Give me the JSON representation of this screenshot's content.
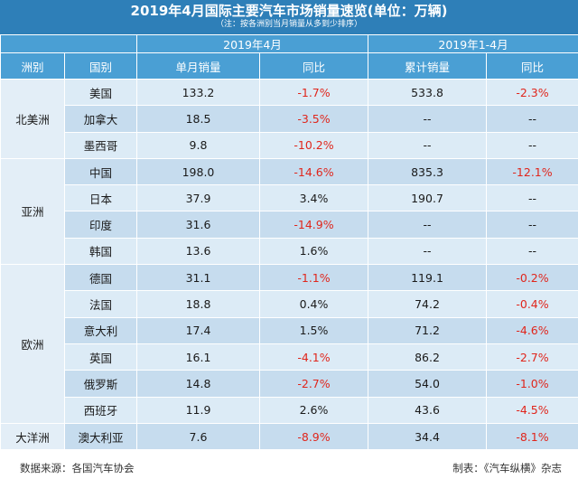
{
  "title": "2019年4月国际主要汽车市场销量速览(单位：万辆)",
  "subtitle": "（注：按各洲别当月销量从多到少排序）",
  "headers": {
    "period_april": "2019年4月",
    "period_ytd": "2019年1-4月",
    "continent": "洲别",
    "country": "国别",
    "monthly_sales": "单月销量",
    "yoy_month": "同比",
    "cumulative_sales": "累计销量",
    "yoy_ytd": "同比"
  },
  "regions": {
    "north_america": "北美洲",
    "asia": "亚洲",
    "europe": "欧洲",
    "oceania": "大洋洲"
  },
  "rows": [
    {
      "country": "美国",
      "monthly": "133.2",
      "yoy_m": "-1.7%",
      "cumulative": "533.8",
      "yoy_c": "-2.3%"
    },
    {
      "country": "加拿大",
      "monthly": "18.5",
      "yoy_m": "-3.5%",
      "cumulative": "--",
      "yoy_c": "--"
    },
    {
      "country": "墨西哥",
      "monthly": "9.8",
      "yoy_m": "-10.2%",
      "cumulative": "--",
      "yoy_c": "--"
    },
    {
      "country": "中国",
      "monthly": "198.0",
      "yoy_m": "-14.6%",
      "cumulative": "835.3",
      "yoy_c": "-12.1%"
    },
    {
      "country": "日本",
      "monthly": "37.9",
      "yoy_m": "3.4%",
      "cumulative": "190.7",
      "yoy_c": "--"
    },
    {
      "country": "印度",
      "monthly": "31.6",
      "yoy_m": "-14.9%",
      "cumulative": "--",
      "yoy_c": "--"
    },
    {
      "country": "韩国",
      "monthly": "13.6",
      "yoy_m": "1.6%",
      "cumulative": "--",
      "yoy_c": "--"
    },
    {
      "country": "德国",
      "monthly": "31.1",
      "yoy_m": "-1.1%",
      "cumulative": "119.1",
      "yoy_c": "-0.2%"
    },
    {
      "country": "法国",
      "monthly": "18.8",
      "yoy_m": "0.4%",
      "cumulative": "74.2",
      "yoy_c": "-0.4%"
    },
    {
      "country": "意大利",
      "monthly": "17.4",
      "yoy_m": "1.5%",
      "cumulative": "71.2",
      "yoy_c": "-4.6%"
    },
    {
      "country": "英国",
      "monthly": "16.1",
      "yoy_m": "-4.1%",
      "cumulative": "86.2",
      "yoy_c": "-2.7%"
    },
    {
      "country": "俄罗斯",
      "monthly": "14.8",
      "yoy_m": "-2.7%",
      "cumulative": "54.0",
      "yoy_c": "-1.0%"
    },
    {
      "country": "西班牙",
      "monthly": "11.9",
      "yoy_m": "2.6%",
      "cumulative": "43.6",
      "yoy_c": "-4.5%"
    },
    {
      "country": "澳大利亚",
      "monthly": "7.6",
      "yoy_m": "-8.9%",
      "cumulative": "34.4",
      "yoy_c": "-8.1%"
    }
  ],
  "colors": {
    "header_blue": "#2e7fb8",
    "column_header_blue": "#4a9fd4",
    "row_light": "#dcebf6",
    "row_dark": "#c6dcee",
    "negative_red": "#e0261c"
  },
  "footer": {
    "source": "数据来源：各国汽车协会",
    "maker": "制表：《汽车纵横》杂志"
  }
}
